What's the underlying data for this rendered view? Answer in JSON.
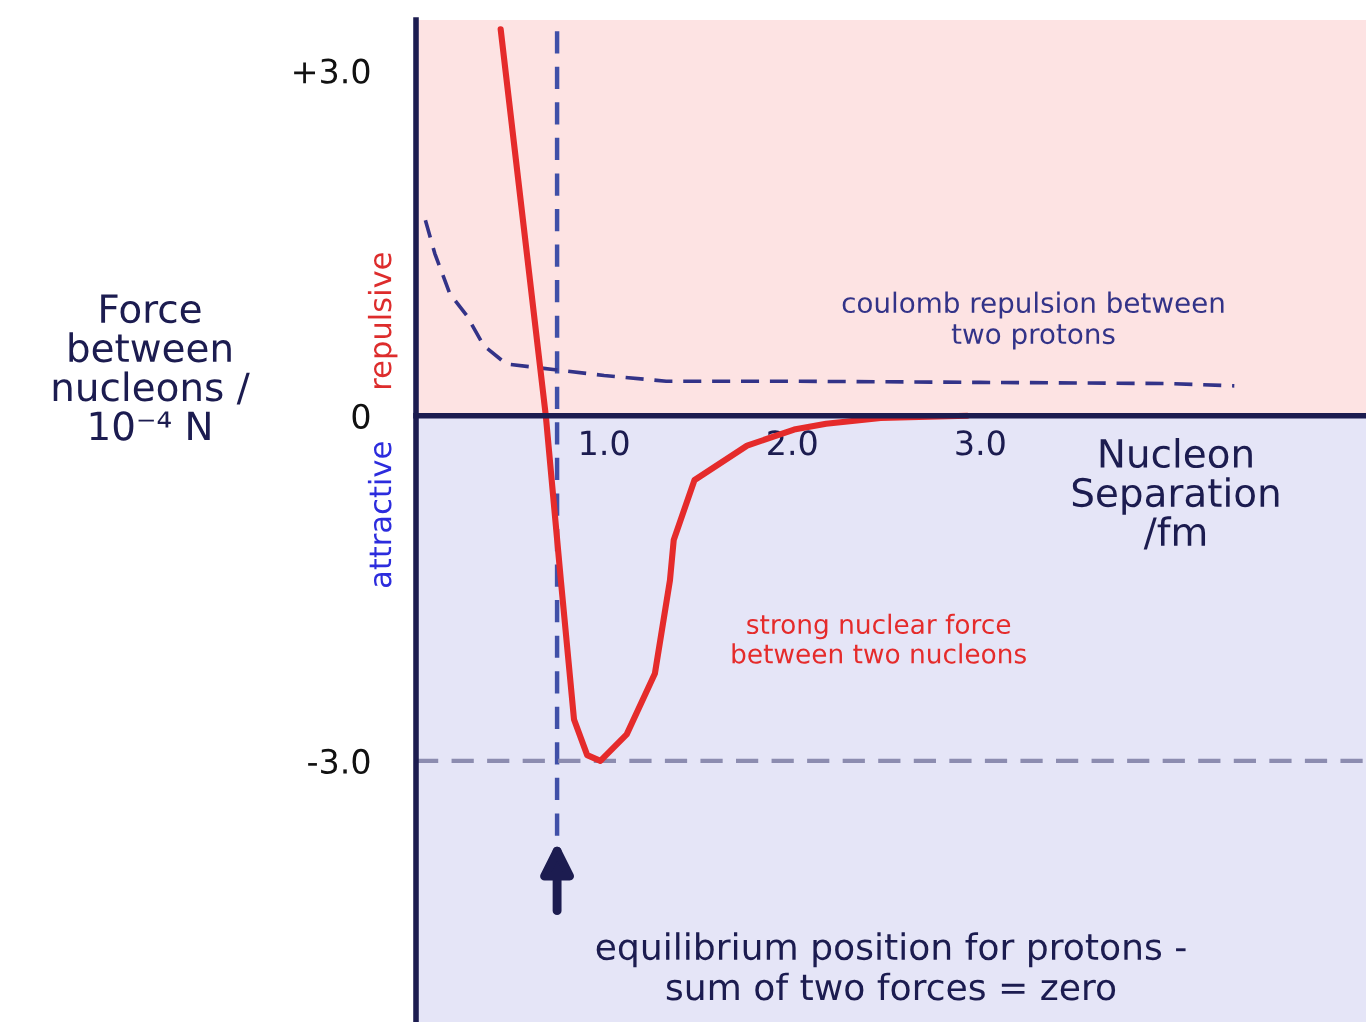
{
  "chart_data": {
    "type": "line",
    "xlabel": "Nucleon\nSeparation\n/fm",
    "ylabel": "Force\nbetween\nnucleons /\n10⁻⁴ N",
    "xlim": [
      0,
      5.05
    ],
    "ylim": [
      -5.27,
      3.44
    ],
    "xticks": [
      {
        "value": 1,
        "label": "1.0"
      },
      {
        "value": 2,
        "label": "2.0"
      },
      {
        "value": 3,
        "label": "3.0"
      }
    ],
    "yticks": [
      {
        "value": 3,
        "label": "+3.0"
      },
      {
        "value": 0,
        "label": "0"
      },
      {
        "value": -3,
        "label": "-3.0"
      }
    ],
    "series": [
      {
        "name": "coulomb repulsion between\ntwo protons",
        "color": "#333388",
        "line_style": "dashed",
        "x": [
          0.05,
          0.1,
          0.18,
          0.27,
          0.36,
          0.48,
          0.74,
          1.0,
          1.33,
          2.0,
          3.0,
          4.0,
          4.35
        ],
        "values": [
          1.7,
          1.41,
          1.06,
          0.87,
          0.61,
          0.45,
          0.4,
          0.35,
          0.3,
          0.3,
          0.29,
          0.28,
          0.26
        ]
      },
      {
        "name": "strong nuclear force\nbetween two nucleons",
        "color": "#e52b2b",
        "line_style": "solid",
        "x": [
          0.45,
          0.69,
          0.77,
          0.84,
          0.91,
          0.98,
          1.12,
          1.27,
          1.35,
          1.37,
          1.48,
          1.76,
          2.01,
          2.18,
          2.47,
          2.93
        ],
        "values": [
          3.36,
          0.0,
          -1.43,
          -2.64,
          -2.95,
          -3.0,
          -2.77,
          -2.24,
          -1.43,
          -1.08,
          -0.56,
          -0.26,
          -0.12,
          -0.07,
          -0.02,
          0.0
        ]
      }
    ],
    "ref_lines": [
      {
        "axis": "x",
        "value": 0.75,
        "color": "#4050a8",
        "line_style": "dashed"
      },
      {
        "axis": "y",
        "value": -3.0,
        "color": "#8c8cb0",
        "line_style": "dashed"
      }
    ],
    "bands": [
      {
        "axis": "y",
        "from": 0,
        "to": 3.44,
        "label": "repulsive",
        "color": "#fde3e3"
      },
      {
        "axis": "y",
        "from": -5.27,
        "to": 0,
        "label": "attractive",
        "color": "#e5e5f7"
      }
    ],
    "annotations": [
      {
        "text": "equilibrium position for protons -\nsum of two forces = zero",
        "x": 0.75,
        "y": -3.65
      }
    ]
  }
}
